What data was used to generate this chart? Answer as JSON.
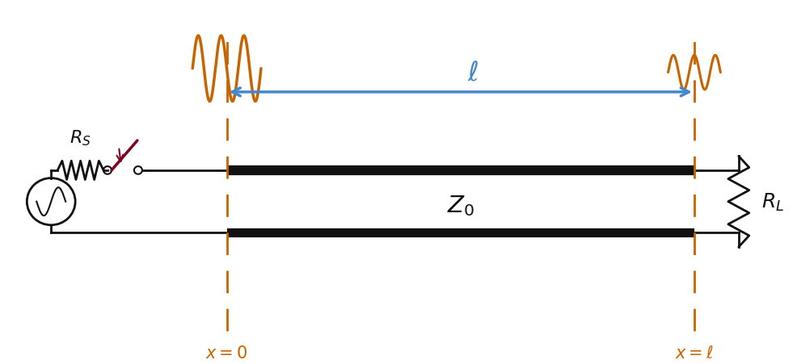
{
  "fig_width": 9.87,
  "fig_height": 4.52,
  "dpi": 100,
  "bg_color": "#ffffff",
  "orange_color": "#c86400",
  "blue_color": "#4488cc",
  "dark_red_color": "#800020",
  "black_color": "#111111",
  "tl_x0": 2.8,
  "tl_x1": 8.6,
  "tl_top_y": 2.35,
  "tl_bot_y": 1.55,
  "xlim": [
    0,
    9.87
  ],
  "ylim": [
    0,
    4.52
  ]
}
